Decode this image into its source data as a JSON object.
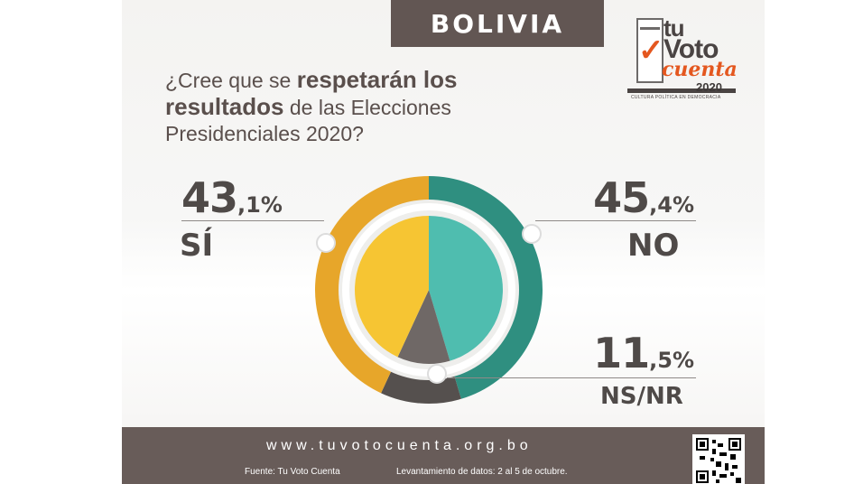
{
  "header": {
    "country": "BOLIVIA"
  },
  "logo": {
    "word_tu": "tu",
    "word_voto": "Voto",
    "word_cuenta": "cuenta",
    "tagline": "CULTURA POLÍTICA EN DEMOCRACIA",
    "year": "2020"
  },
  "question": {
    "part1": "¿Cree que se ",
    "part2_bold": "respetarán los resultados",
    "part3": " de las Elecciones Presidenciales 2020?"
  },
  "colors": {
    "si": "#f6c533",
    "si_ring": "#e7a62a",
    "no": "#4fbdaf",
    "no_ring": "#2f8f80",
    "nsnr": "#6f6866",
    "nsnr_ring": "#55504e",
    "footer": "#685c59",
    "accent": "#e4571f"
  },
  "chart_data": {
    "type": "pie",
    "categories": [
      "SÍ",
      "NO",
      "NS/NR"
    ],
    "values": [
      43.1,
      45.4,
      11.5
    ],
    "value_labels": [
      {
        "int": "43",
        "dec": ",1%"
      },
      {
        "int": "45",
        "dec": ",4%"
      },
      {
        "int": "11",
        "dec": ",5%"
      }
    ],
    "title": "¿Cree que se respetarán los resultados de las Elecciones Presidenciales 2020?"
  },
  "footer": {
    "url": "www.tuvotocuenta.org.bo",
    "source": "Fuente: Tu Voto Cuenta",
    "survey_dates": "Levantamiento de datos: 2 al 5 de octubre."
  }
}
